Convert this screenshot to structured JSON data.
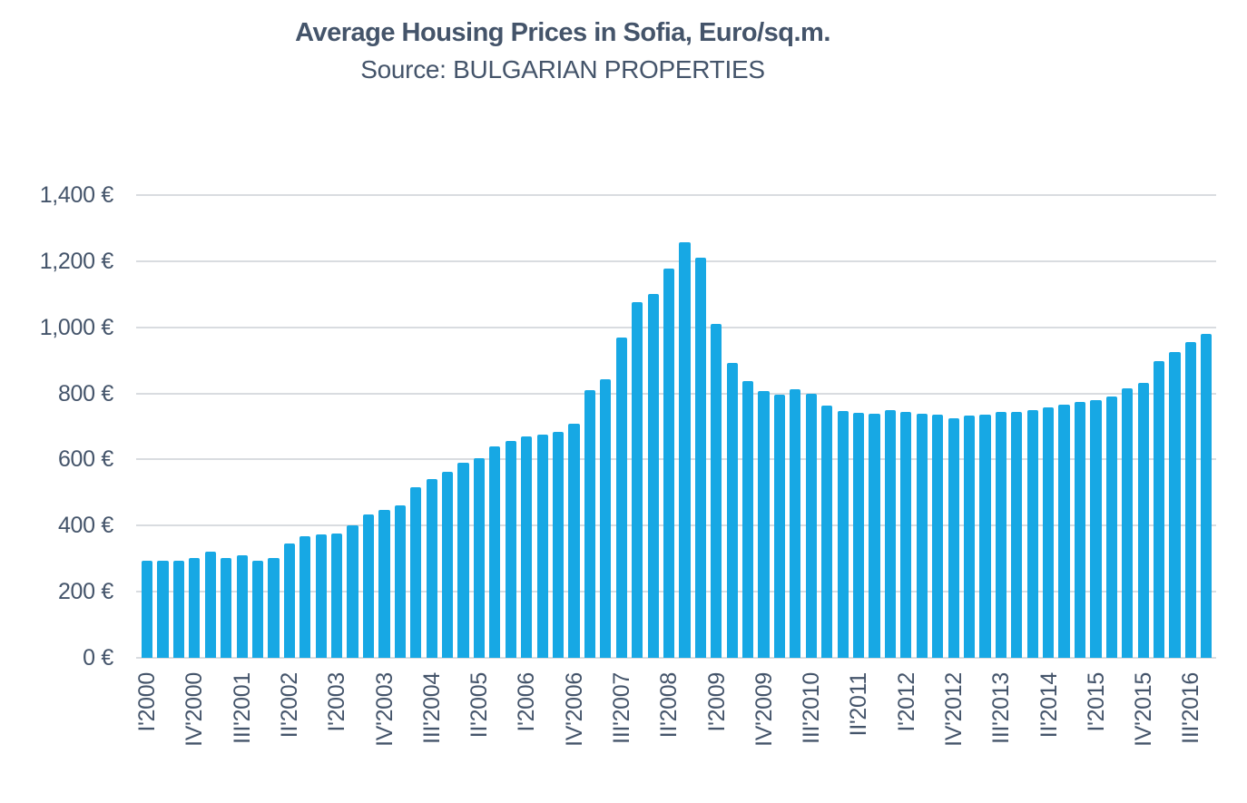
{
  "chart_data": {
    "type": "bar",
    "title": "Average Housing Prices in Sofia, Euro/sq.m.",
    "subtitle": "Source: BULGARIAN PROPERTIES",
    "categories": [
      "I'2000",
      "II'2000",
      "III'2000",
      "IV'2000",
      "I'2001",
      "II'2001",
      "III'2001",
      "IV'2001",
      "I'2002",
      "II'2002",
      "III'2002",
      "IV'2002",
      "I'2003",
      "II'2003",
      "III'2003",
      "IV'2003",
      "I'2004",
      "II'2004",
      "III'2004",
      "IV'2004",
      "I'2005",
      "II'2005",
      "III'2005",
      "IV'2005",
      "I'2006",
      "II'2006",
      "III'2006",
      "IV'2006",
      "I'2007",
      "II'2007",
      "III'2007",
      "IV'2007",
      "I'2008",
      "II'2008",
      "III'2008",
      "IV'2008",
      "I'2009",
      "II'2009",
      "III'2009",
      "IV'2009",
      "I'2010",
      "II'2010",
      "III'2010",
      "IV'2010",
      "I'2011",
      "II'2011",
      "III'2011",
      "IV'2011",
      "I'2012",
      "II'2012",
      "III'2012",
      "IV'2012",
      "I'2013",
      "II'2013",
      "III'2013",
      "IV'2013",
      "I'2014",
      "II'2014",
      "III'2014",
      "IV'2014",
      "I'2015",
      "II'2015",
      "III'2015",
      "IV'2015",
      "I'2016",
      "II'2016",
      "III'2016",
      "IV'2016"
    ],
    "values": [
      295,
      295,
      295,
      301,
      322,
      301,
      310,
      295,
      301,
      346,
      367,
      373,
      376,
      402,
      434,
      448,
      461,
      516,
      542,
      562,
      591,
      605,
      641,
      655,
      671,
      674,
      683,
      709,
      810,
      842,
      969,
      1075,
      1100,
      1177,
      1258,
      1212,
      1010,
      892,
      837,
      808,
      796,
      812,
      800,
      764,
      748,
      741,
      738,
      750,
      743,
      738,
      735,
      726,
      732,
      736,
      743,
      745,
      750,
      759,
      766,
      773,
      780,
      791,
      816,
      833,
      899,
      926,
      956,
      979
    ],
    "x_tick_every": 3,
    "x_tick_labels": [
      "I'2000",
      "IV'2000",
      "III'2001",
      "II'2002",
      "I'2003",
      "IV'2003",
      "III'2004",
      "II'2005",
      "I'2006",
      "IV'2006",
      "III'2007",
      "II'2008",
      "I'2009",
      "IV'2009",
      "III'2010",
      "II'2011",
      "I'2012",
      "IV'2012",
      "III'2013",
      "II'2014",
      "I'2015",
      "IV'2015",
      "III'2016"
    ],
    "y_ticks": [
      {
        "value": 0,
        "label": "0 €"
      },
      {
        "value": 200,
        "label": "200 €"
      },
      {
        "value": 400,
        "label": "400 €"
      },
      {
        "value": 600,
        "label": "600 €"
      },
      {
        "value": 800,
        "label": "800 €"
      },
      {
        "value": 1000,
        "label": "1,000 €"
      },
      {
        "value": 1200,
        "label": "1,200 €"
      },
      {
        "value": 1400,
        "label": "1,400 €"
      }
    ],
    "ylim": [
      0,
      1400
    ],
    "grid": true,
    "legend": false,
    "layout": {
      "x_labels_rotated_degrees": -90
    },
    "colors": {
      "bar": "#17A8E4",
      "grid": "#D9DCE0",
      "text": "#44546A",
      "background": "#FFFFFF"
    }
  }
}
